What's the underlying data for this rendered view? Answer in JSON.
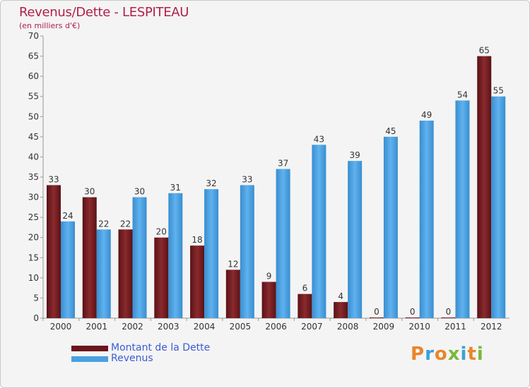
{
  "title": "Revenus/Dette - LESPITEAU",
  "subtitle": "(en milliers d'€)",
  "logo": "Proxiti",
  "colors": {
    "dette": "#7a1e22",
    "revenus": "#4aa0e0",
    "title": "#b0204a",
    "legend_text": "#3c5bd6"
  },
  "chart_data": {
    "type": "bar",
    "title": "Revenus/Dette - LESPITEAU",
    "subtitle": "(en milliers d'€)",
    "categories": [
      "2000",
      "2001",
      "2002",
      "2003",
      "2004",
      "2005",
      "2006",
      "2007",
      "2008",
      "2009",
      "2010",
      "2011",
      "2012"
    ],
    "series": [
      {
        "name": "Montant de la Dette",
        "values": [
          33,
          30,
          22,
          20,
          18,
          12,
          9,
          6,
          4,
          0,
          0,
          0,
          65
        ]
      },
      {
        "name": "Revenus",
        "values": [
          24,
          22,
          30,
          31,
          32,
          33,
          37,
          43,
          39,
          45,
          49,
          54,
          55
        ]
      }
    ],
    "yticks": [
      "0",
      "5",
      "10",
      "15",
      "20",
      "25",
      "30",
      "35",
      "40",
      "45",
      "50",
      "55",
      "60",
      "65",
      "70"
    ],
    "ylim": [
      0,
      70
    ],
    "grid": false,
    "legend_position": "bottom-left"
  }
}
